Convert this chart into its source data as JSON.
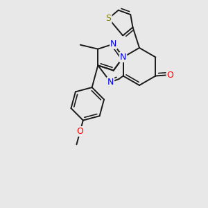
{
  "background_color": "#e8e8e8",
  "figsize": [
    3.0,
    3.0
  ],
  "dpi": 100,
  "bond_color": "#1a1a1a",
  "bond_width": 1.4,
  "atom_colors": {
    "S": "#808000",
    "N": "#0000ee",
    "O": "#ff0000",
    "C": "#1a1a1a"
  }
}
